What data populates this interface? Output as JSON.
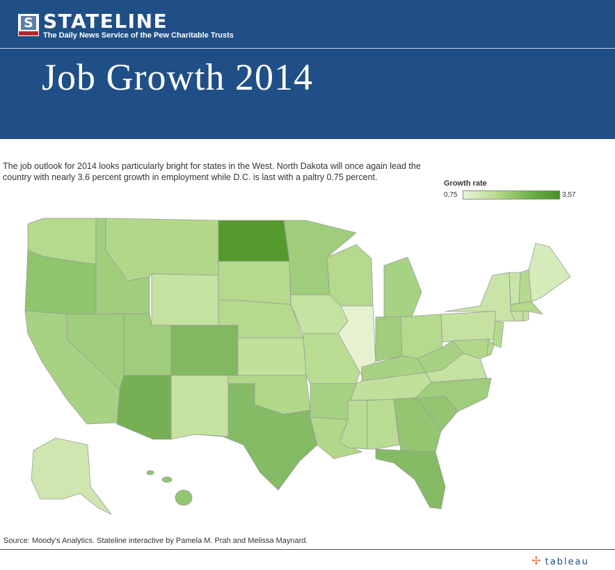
{
  "header": {
    "brand": "STATELINE",
    "tagline": "The Daily News Service of the Pew Charitable Trusts",
    "logo_letter": "S",
    "title": "Job Growth 2014"
  },
  "description": "The job outlook for 2014 looks particularly bright for states in the West. North Dakota will once again lead the country with nearly 3.6 percent growth in employment while D.C. is last with a paltry 0.75 percent.",
  "legend": {
    "title": "Growth rate",
    "min_label": "0,75",
    "max_label": "3,57",
    "min_value": 0.75,
    "max_value": 3.57,
    "colors": [
      "#ebf5d8",
      "#4a8e23"
    ]
  },
  "source": "Source: Moody's Analytics. Stateline interactive by Pamela M. Prah and Melissa Maynard.",
  "footer_logo": "tableau",
  "footer_logo_icon": "tableau-plus-icon"
}
